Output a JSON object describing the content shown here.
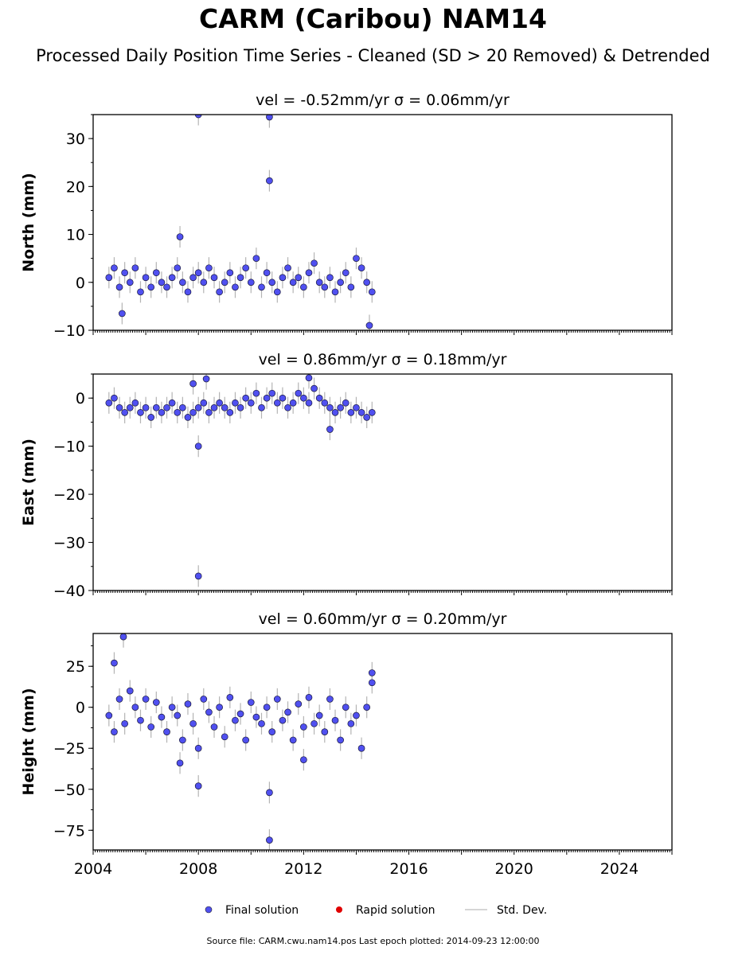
{
  "title": "CARM (Caribou) NAM14",
  "subtitle": "Processed Daily Position Time Series - Cleaned (SD > 20 Removed) & Detrended",
  "legend": {
    "final": "Final solution",
    "rapid": "Rapid solution",
    "std": "Std. Dev."
  },
  "source_line": "Source file: CARM.cwu.nam14.pos  Last epoch plotted: 2014-09-23 12:00:00",
  "colors": {
    "final_point": "#5050f0",
    "rapid_point": "#e00000",
    "std_dev": "#b4b4b4"
  },
  "chart_data": [
    {
      "type": "scatter",
      "panel": "north",
      "title": "vel = -0.52mm/yr   σ = 0.06mm/yr",
      "ylabel": "North (mm)",
      "xlim": [
        2004.0,
        2026.0
      ],
      "ylim": [
        -10,
        35
      ],
      "yticks": [
        -10,
        0,
        10,
        20,
        30
      ],
      "ytick_labels": [
        "−10",
        "0",
        "10",
        "20",
        "30"
      ],
      "series": [
        {
          "name": "Final solution",
          "x": [
            2004.6,
            2004.8,
            2005.0,
            2005.2,
            2005.4,
            2005.6,
            2005.8,
            2006.0,
            2006.2,
            2006.4,
            2006.6,
            2006.8,
            2007.0,
            2007.2,
            2007.4,
            2007.6,
            2007.8,
            2008.0,
            2008.2,
            2008.4,
            2008.6,
            2008.8,
            2009.0,
            2009.2,
            2009.4,
            2009.6,
            2009.8,
            2010.0,
            2010.2,
            2010.4,
            2010.6,
            2010.8,
            2011.0,
            2011.2,
            2011.4,
            2011.6,
            2011.8,
            2012.0,
            2012.2,
            2012.4,
            2012.6,
            2012.8,
            2013.0,
            2013.2,
            2013.4,
            2013.6,
            2013.8,
            2014.0,
            2014.2,
            2014.4,
            2014.6,
            2005.1,
            2007.3,
            2008.0,
            2010.7,
            2010.7,
            2014.5
          ],
          "y": [
            1.0,
            3.0,
            -1.0,
            2.0,
            0.0,
            3.0,
            -2.0,
            1.0,
            -1.0,
            2.0,
            0.0,
            -1.0,
            1.0,
            3.0,
            0.0,
            -2.0,
            1.0,
            2.0,
            0.0,
            3.0,
            1.0,
            -2.0,
            0.0,
            2.0,
            -1.0,
            1.0,
            3.0,
            0.0,
            5.0,
            -1.0,
            2.0,
            0.0,
            -2.0,
            1.0,
            3.0,
            0.0,
            1.0,
            -1.0,
            2.0,
            4.0,
            0.0,
            -1.0,
            1.0,
            -2.0,
            0.0,
            2.0,
            -1.0,
            5.0,
            3.0,
            0.0,
            -2.0,
            -6.5,
            9.5,
            35.0,
            34.5,
            21.2,
            -9.0
          ]
        }
      ]
    },
    {
      "type": "scatter",
      "panel": "east",
      "title": "vel = 0.86mm/yr   σ = 0.18mm/yr",
      "ylabel": "East (mm)",
      "xlim": [
        2004.0,
        2026.0
      ],
      "ylim": [
        -40,
        5
      ],
      "yticks": [
        -40,
        -30,
        -20,
        -10,
        0
      ],
      "ytick_labels": [
        "−40",
        "−30",
        "−20",
        "−10",
        "0"
      ],
      "series": [
        {
          "name": "Final solution",
          "x": [
            2004.6,
            2004.8,
            2005.0,
            2005.2,
            2005.4,
            2005.6,
            2005.8,
            2006.0,
            2006.2,
            2006.4,
            2006.6,
            2006.8,
            2007.0,
            2007.2,
            2007.4,
            2007.6,
            2007.8,
            2008.0,
            2008.2,
            2008.4,
            2008.6,
            2008.8,
            2009.0,
            2009.2,
            2009.4,
            2009.6,
            2009.8,
            2010.0,
            2010.2,
            2010.4,
            2010.6,
            2010.8,
            2011.0,
            2011.2,
            2011.4,
            2011.6,
            2011.8,
            2012.0,
            2012.2,
            2012.4,
            2012.6,
            2012.8,
            2013.0,
            2013.2,
            2013.4,
            2013.6,
            2013.8,
            2014.0,
            2014.2,
            2014.4,
            2014.6,
            2007.8,
            2008.0,
            2008.3,
            2012.2,
            2013.0,
            2008.0
          ],
          "y": [
            -1.0,
            0.0,
            -2.0,
            -3.0,
            -2.0,
            -1.0,
            -3.0,
            -2.0,
            -4.0,
            -2.0,
            -3.0,
            -2.0,
            -1.0,
            -3.0,
            -2.0,
            -4.0,
            -3.0,
            -2.0,
            -1.0,
            -3.0,
            -2.0,
            -1.0,
            -2.0,
            -3.0,
            -1.0,
            -2.0,
            0.0,
            -1.0,
            1.0,
            -2.0,
            0.0,
            1.0,
            -1.0,
            0.0,
            -2.0,
            -1.0,
            1.0,
            0.0,
            -1.0,
            2.0,
            0.0,
            -1.0,
            -2.0,
            -3.0,
            -2.0,
            -1.0,
            -3.0,
            -2.0,
            -3.0,
            -4.0,
            -3.0,
            3.0,
            -10.0,
            4.0,
            4.2,
            -6.5,
            -37.0
          ]
        }
      ]
    },
    {
      "type": "scatter",
      "panel": "height",
      "title": "vel = 0.60mm/yr   σ = 0.20mm/yr",
      "ylabel": "Height (mm)",
      "xlim": [
        2004.0,
        2026.0
      ],
      "ylim": [
        -87,
        45
      ],
      "yticks": [
        -75,
        -50,
        -25,
        0,
        25
      ],
      "ytick_labels": [
        "−75",
        "−50",
        "−25",
        "0",
        "25"
      ],
      "xticks": [
        2004,
        2008,
        2012,
        2016,
        2020,
        2024
      ],
      "xtick_labels": [
        "2004",
        "2008",
        "2012",
        "2016",
        "2020",
        "2024"
      ],
      "series": [
        {
          "name": "Final solution",
          "x": [
            2004.6,
            2004.8,
            2005.0,
            2005.2,
            2005.4,
            2005.6,
            2005.8,
            2006.0,
            2006.2,
            2006.4,
            2006.6,
            2006.8,
            2007.0,
            2007.2,
            2007.4,
            2007.6,
            2007.8,
            2008.0,
            2008.2,
            2008.4,
            2008.6,
            2008.8,
            2009.0,
            2009.2,
            2009.4,
            2009.6,
            2009.8,
            2010.0,
            2010.2,
            2010.4,
            2010.6,
            2010.8,
            2011.0,
            2011.2,
            2011.4,
            2011.6,
            2011.8,
            2012.0,
            2012.2,
            2012.4,
            2012.6,
            2012.8,
            2013.0,
            2013.2,
            2013.4,
            2013.6,
            2013.8,
            2014.0,
            2014.2,
            2014.4,
            2014.6,
            2004.8,
            2005.15,
            2007.3,
            2008.0,
            2010.7,
            2010.7,
            2012.0,
            2014.6
          ],
          "y": [
            -5.0,
            -15.0,
            5.0,
            -10.0,
            10.0,
            0.0,
            -8.0,
            5.0,
            -12.0,
            3.0,
            -6.0,
            -15.0,
            0.0,
            -5.0,
            -20.0,
            2.0,
            -10.0,
            -25.0,
            5.0,
            -3.0,
            -12.0,
            0.0,
            -18.0,
            6.0,
            -8.0,
            -4.0,
            -20.0,
            3.0,
            -6.0,
            -10.0,
            0.0,
            -15.0,
            5.0,
            -8.0,
            -3.0,
            -20.0,
            2.0,
            -12.0,
            6.0,
            -10.0,
            -5.0,
            -15.0,
            5.0,
            -8.0,
            -20.0,
            0.0,
            -10.0,
            -5.0,
            -25.0,
            0.0,
            15.0,
            27.0,
            43.0,
            -34.0,
            -48.0,
            -52.0,
            -81.0,
            -32.0,
            21.0
          ]
        }
      ]
    }
  ]
}
